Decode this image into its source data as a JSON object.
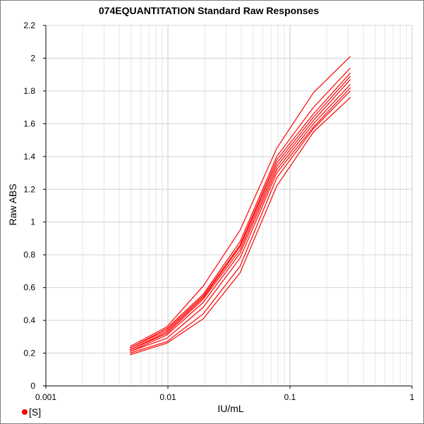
{
  "chart_data": {
    "type": "line",
    "title": "074EQUANTITATION Standard Raw Responses",
    "xlabel": "IU/mL",
    "ylabel": "Raw ABS",
    "x_scale": "log",
    "xlim": [
      0.001,
      1
    ],
    "ylim": [
      0,
      2.2
    ],
    "x_ticks": [
      0.001,
      0.01,
      0.1,
      1
    ],
    "x_tick_labels": [
      "0.001",
      "0.01",
      "0.1",
      "1"
    ],
    "y_ticks": [
      0,
      0.2,
      0.4,
      0.6,
      0.8,
      1,
      1.2,
      1.4,
      1.6,
      1.8,
      2,
      2.2
    ],
    "y_tick_labels": [
      "0",
      "0.2",
      "0.4",
      "0.6",
      "0.8",
      "1",
      "1.2",
      "1.4",
      "1.6",
      "1.8",
      "2",
      "2.2"
    ],
    "grid": true,
    "legend_position": "bottom-left",
    "legend_label": "[S]",
    "series_color": "#ff0000",
    "x": [
      0.00488,
      0.00977,
      0.0195,
      0.039,
      0.078,
      0.156,
      0.3125
    ],
    "series": [
      {
        "values": [
          0.19,
          0.26,
          0.41,
          0.69,
          1.22,
          1.55,
          1.76
        ]
      },
      {
        "values": [
          0.2,
          0.27,
          0.44,
          0.73,
          1.27,
          1.57,
          1.8
        ]
      },
      {
        "values": [
          0.21,
          0.29,
          0.48,
          0.78,
          1.3,
          1.58,
          1.82
        ]
      },
      {
        "values": [
          0.21,
          0.31,
          0.51,
          0.81,
          1.32,
          1.6,
          1.84
        ]
      },
      {
        "values": [
          0.22,
          0.32,
          0.53,
          0.83,
          1.34,
          1.62,
          1.87
        ]
      },
      {
        "values": [
          0.22,
          0.33,
          0.54,
          0.85,
          1.36,
          1.64,
          1.89
        ]
      },
      {
        "values": [
          0.23,
          0.34,
          0.55,
          0.86,
          1.38,
          1.66,
          1.91
        ]
      },
      {
        "values": [
          0.23,
          0.35,
          0.56,
          0.88,
          1.4,
          1.7,
          1.94
        ]
      },
      {
        "values": [
          0.24,
          0.36,
          0.61,
          0.95,
          1.45,
          1.79,
          2.01
        ]
      }
    ]
  }
}
